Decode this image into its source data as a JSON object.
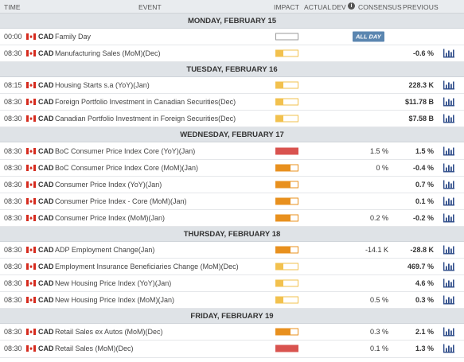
{
  "header": {
    "time": "TIME",
    "event": "EVENT",
    "impact": "IMPACT",
    "actual": "ACTUAL",
    "dev": "DEV",
    "info": "i",
    "consensus": "CONSENSUS",
    "previous": "PREVIOUS"
  },
  "colors": {
    "low": "#f2c14e",
    "medium": "#e8901e",
    "high": "#d9534f",
    "chart_icon": "#2f4d8a"
  },
  "days": [
    {
      "label": "MONDAY, FEBRUARY 15",
      "events": [
        {
          "time": "00:00",
          "currency": "CAD",
          "name": "Family Day",
          "impact": "holiday",
          "actual": "",
          "consensus": "",
          "previous": "",
          "allday": "ALL DAY",
          "chart": false
        },
        {
          "time": "08:30",
          "currency": "CAD",
          "name": "Manufacturing Sales (MoM)(Dec)",
          "impact": "low",
          "actual": "",
          "consensus": "",
          "previous": "-0.6 %",
          "chart": true
        }
      ]
    },
    {
      "label": "TUESDAY, FEBRUARY 16",
      "events": [
        {
          "time": "08:15",
          "currency": "CAD",
          "name": "Housing Starts s.a (YoY)(Jan)",
          "impact": "low",
          "actual": "",
          "consensus": "",
          "previous": "228.3 K",
          "chart": true
        },
        {
          "time": "08:30",
          "currency": "CAD",
          "name": "Foreign Portfolio Investment in Canadian Securities(Dec)",
          "impact": "low",
          "actual": "",
          "consensus": "",
          "previous": "$11.78 B",
          "chart": true
        },
        {
          "time": "08:30",
          "currency": "CAD",
          "name": "Canadian Portfolio Investment in Foreign Securities(Dec)",
          "impact": "low",
          "actual": "",
          "consensus": "",
          "previous": "$7.58 B",
          "chart": true
        }
      ]
    },
    {
      "label": "WEDNESDAY, FEBRUARY 17",
      "events": [
        {
          "time": "08:30",
          "currency": "CAD",
          "name": "BoC Consumer Price Index Core (YoY)(Jan)",
          "impact": "high",
          "actual": "",
          "consensus": "1.5 %",
          "previous": "1.5 %",
          "chart": true
        },
        {
          "time": "08:30",
          "currency": "CAD",
          "name": "BoC Consumer Price Index Core (MoM)(Jan)",
          "impact": "medium",
          "actual": "",
          "consensus": "0 %",
          "previous": "-0.4 %",
          "chart": true
        },
        {
          "time": "08:30",
          "currency": "CAD",
          "name": "Consumer Price Index (YoY)(Jan)",
          "impact": "medium",
          "actual": "",
          "consensus": "",
          "previous": "0.7 %",
          "chart": true
        },
        {
          "time": "08:30",
          "currency": "CAD",
          "name": "Consumer Price Index - Core (MoM)(Jan)",
          "impact": "medium",
          "actual": "",
          "consensus": "",
          "previous": "0.1 %",
          "chart": true
        },
        {
          "time": "08:30",
          "currency": "CAD",
          "name": "Consumer Price Index (MoM)(Jan)",
          "impact": "medium",
          "actual": "",
          "consensus": "0.2 %",
          "previous": "-0.2 %",
          "chart": true
        }
      ]
    },
    {
      "label": "THURSDAY, FEBRUARY 18",
      "events": [
        {
          "time": "08:30",
          "currency": "CAD",
          "name": "ADP Employment Change(Jan)",
          "impact": "medium",
          "actual": "",
          "consensus": "-14.1 K",
          "previous": "-28.8 K",
          "chart": true
        },
        {
          "time": "08:30",
          "currency": "CAD",
          "name": "Employment Insurance Beneficiaries Change (MoM)(Dec)",
          "impact": "low",
          "actual": "",
          "consensus": "",
          "previous": "469.7 %",
          "chart": true
        },
        {
          "time": "08:30",
          "currency": "CAD",
          "name": "New Housing Price Index (YoY)(Jan)",
          "impact": "low",
          "actual": "",
          "consensus": "",
          "previous": "4.6 %",
          "chart": true
        },
        {
          "time": "08:30",
          "currency": "CAD",
          "name": "New Housing Price Index (MoM)(Jan)",
          "impact": "low",
          "actual": "",
          "consensus": "0.5 %",
          "previous": "0.3 %",
          "chart": true
        }
      ]
    },
    {
      "label": "FRIDAY, FEBRUARY 19",
      "events": [
        {
          "time": "08:30",
          "currency": "CAD",
          "name": "Retail Sales ex Autos (MoM)(Dec)",
          "impact": "medium",
          "actual": "",
          "consensus": "0.3 %",
          "previous": "2.1 %",
          "chart": true
        },
        {
          "time": "08:30",
          "currency": "CAD",
          "name": "Retail Sales (MoM)(Dec)",
          "impact": "high",
          "actual": "",
          "consensus": "0.1 %",
          "previous": "1.3 %",
          "chart": true
        }
      ]
    }
  ]
}
